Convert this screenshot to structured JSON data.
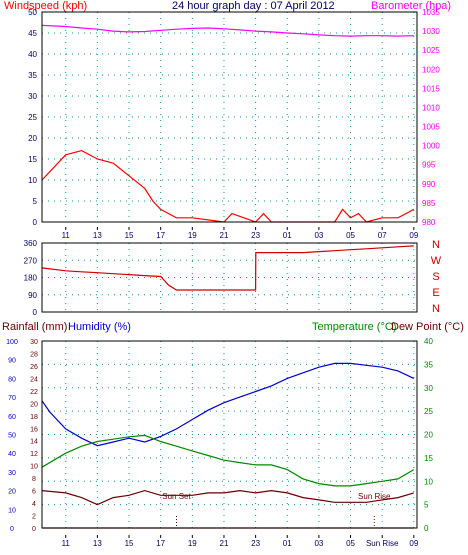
{
  "colors": {
    "wind": "#ff0000",
    "gust": "#0000cc",
    "wind_alt": "#008800",
    "barometer": "#ff00ff",
    "direction": "#cc0000",
    "rainfall": "#cc0000",
    "humidity": "#0000cc",
    "temperature": "#008800",
    "dewpoint": "#660000",
    "grid": "#009999",
    "axis_text": "#000066",
    "frame": "#000000"
  },
  "top_panel": {
    "title_left": "Windspeed (kph)",
    "title_center": "24 hour graph day : 07 April 2012",
    "title_right": "Barometer (hpa)",
    "left_ticks": [
      "0",
      "5",
      "10",
      "15",
      "20",
      "25",
      "30",
      "35",
      "40",
      "45",
      "50"
    ],
    "right_ticks": [
      "980",
      "985",
      "990",
      "995",
      "1000",
      "1005",
      "1010",
      "1015",
      "1020",
      "1025",
      "1030",
      "1035"
    ]
  },
  "dir_panel": {
    "left_ticks": [
      "0",
      "90",
      "180",
      "270",
      "360"
    ],
    "right_labels": [
      "N",
      "W",
      "S",
      "E",
      "N"
    ]
  },
  "bottom_panel": {
    "title_left1": "Rainfall (mm)",
    "title_left2": "Humidity (%)",
    "title_right1": "Temperature (°C)",
    "title_right2": "Dew Point (°C)",
    "left_ticks_hum": [
      "0",
      "10",
      "20",
      "30",
      "40",
      "50",
      "60",
      "70",
      "80",
      "90",
      "100"
    ],
    "left_ticks_rain": [
      "0",
      "2",
      "4",
      "6",
      "8",
      "10",
      "12",
      "14",
      "16",
      "18",
      "20",
      "22",
      "24",
      "26",
      "28",
      "30"
    ],
    "right_ticks_temp": [
      "0",
      "5",
      "10",
      "15",
      "20",
      "25",
      "30",
      "35",
      "40"
    ],
    "sunset_label": "Sun Set",
    "sunrise_label": "Sun Rise",
    "x_bottom_labels": [
      "11",
      "13",
      "15",
      "17",
      "19",
      "21",
      "23",
      "01",
      "03",
      "05",
      "Sun Rise",
      "09"
    ]
  },
  "x_labels": [
    "11",
    "13",
    "15",
    "17",
    "19",
    "21",
    "23",
    "01",
    "03",
    "05",
    "07",
    "09"
  ],
  "chart_data": [
    {
      "type": "line",
      "title": "24 hour graph day : 07 April 2012",
      "x_hours": [
        "11",
        "13",
        "15",
        "17",
        "19",
        "21",
        "23",
        "01",
        "03",
        "05",
        "07",
        "09"
      ],
      "series": [
        {
          "name": "Windspeed (kph)",
          "axis": "left",
          "ylim": [
            0,
            50
          ],
          "x": [
            9.5,
            11,
            12,
            13,
            14,
            15,
            16,
            16.5,
            17,
            17.5,
            18,
            18.5,
            19,
            21,
            21.5,
            23,
            23.5,
            24,
            25,
            26,
            27,
            28,
            28.5,
            29,
            29.5,
            30,
            31,
            32,
            32.5,
            33
          ],
          "values": [
            10,
            16,
            17,
            15,
            14,
            11,
            8,
            5,
            3,
            2,
            1,
            1,
            1,
            0,
            2,
            0,
            2,
            0,
            0,
            0,
            0,
            0,
            3,
            1,
            2,
            0,
            1,
            1,
            2,
            3
          ]
        },
        {
          "name": "Barometer (hpa)",
          "axis": "right",
          "ylim": [
            980,
            1035
          ],
          "x": [
            9.5,
            11,
            12,
            13,
            14,
            15,
            16,
            17,
            18,
            19,
            20,
            21,
            22,
            23,
            24,
            25,
            26,
            27,
            28,
            29,
            30,
            31,
            32,
            33
          ],
          "values": [
            1031.5,
            1031.2,
            1030.8,
            1030.5,
            1030.0,
            1029.8,
            1029.9,
            1030.2,
            1030.5,
            1030.7,
            1030.8,
            1030.6,
            1030.3,
            1030.0,
            1029.8,
            1029.5,
            1029.3,
            1029.0,
            1028.8,
            1028.7,
            1028.8,
            1028.8,
            1028.7,
            1028.8
          ]
        }
      ]
    },
    {
      "type": "line",
      "title": "",
      "series": [
        {
          "name": "Wind direction",
          "ylim": [
            0,
            360
          ],
          "x": [
            9.5,
            11,
            12,
            13,
            14,
            15,
            16,
            17,
            17.5,
            18,
            19,
            20,
            21,
            22,
            23,
            23.01,
            24,
            25,
            26,
            27,
            28,
            29,
            30,
            31,
            32,
            33
          ],
          "values": [
            230,
            215,
            210,
            205,
            200,
            195,
            190,
            185,
            140,
            115,
            115,
            115,
            115,
            115,
            115,
            310,
            310,
            310,
            310,
            315,
            320,
            325,
            330,
            335,
            340,
            345
          ]
        }
      ]
    },
    {
      "type": "line",
      "title": "",
      "series": [
        {
          "name": "Humidity (%)",
          "axis": "left",
          "ylim": [
            0,
            100
          ],
          "x": [
            9.5,
            10,
            11,
            12,
            13,
            14,
            15,
            16,
            17,
            18,
            19,
            20,
            21,
            22,
            23,
            24,
            25,
            26,
            27,
            28,
            29,
            30,
            31,
            32,
            33
          ],
          "values": [
            68,
            62,
            53,
            48,
            44,
            46,
            48,
            46,
            49,
            53,
            58,
            63,
            67,
            70,
            73,
            76,
            80,
            83,
            86,
            88,
            88,
            87,
            86,
            84,
            80
          ]
        },
        {
          "name": "Temperature (°C)",
          "axis": "right",
          "ylim": [
            0,
            40
          ],
          "x": [
            9.5,
            11,
            12,
            13,
            14,
            15,
            16,
            17,
            18,
            19,
            20,
            21,
            22,
            23,
            24,
            25,
            26,
            27,
            28,
            29,
            30,
            31,
            32,
            33
          ],
          "values": [
            13,
            16,
            17.5,
            18.5,
            19,
            19.5,
            19.8,
            18.5,
            17.5,
            16.5,
            15.5,
            14.5,
            14,
            13.5,
            13.5,
            12.5,
            10.5,
            9.5,
            9,
            9,
            9.5,
            10,
            10.5,
            12.5
          ]
        },
        {
          "name": "Dew Point (°C)",
          "axis": "right",
          "ylim": [
            0,
            40
          ],
          "x": [
            9.5,
            11,
            12,
            13,
            14,
            15,
            16,
            17,
            18,
            19,
            20,
            21,
            22,
            23,
            24,
            25,
            26,
            27,
            28,
            29,
            30,
            31,
            32,
            33
          ],
          "values": [
            8,
            7.5,
            6.5,
            5,
            6.5,
            7,
            8,
            7,
            7,
            7,
            7.5,
            7.5,
            8,
            7.5,
            8,
            7.5,
            6.5,
            6,
            5.5,
            5.5,
            5.5,
            6,
            6.5,
            7.5
          ]
        },
        {
          "name": "Rainfall (mm)",
          "axis": "left2",
          "ylim": [
            0,
            30
          ],
          "x": [
            9.5,
            33
          ],
          "values": [
            0,
            0
          ]
        }
      ],
      "annotations": [
        {
          "text": "Sun Set",
          "x": 18.0
        },
        {
          "text": "Sun Rise",
          "x": 30.5
        }
      ]
    }
  ]
}
